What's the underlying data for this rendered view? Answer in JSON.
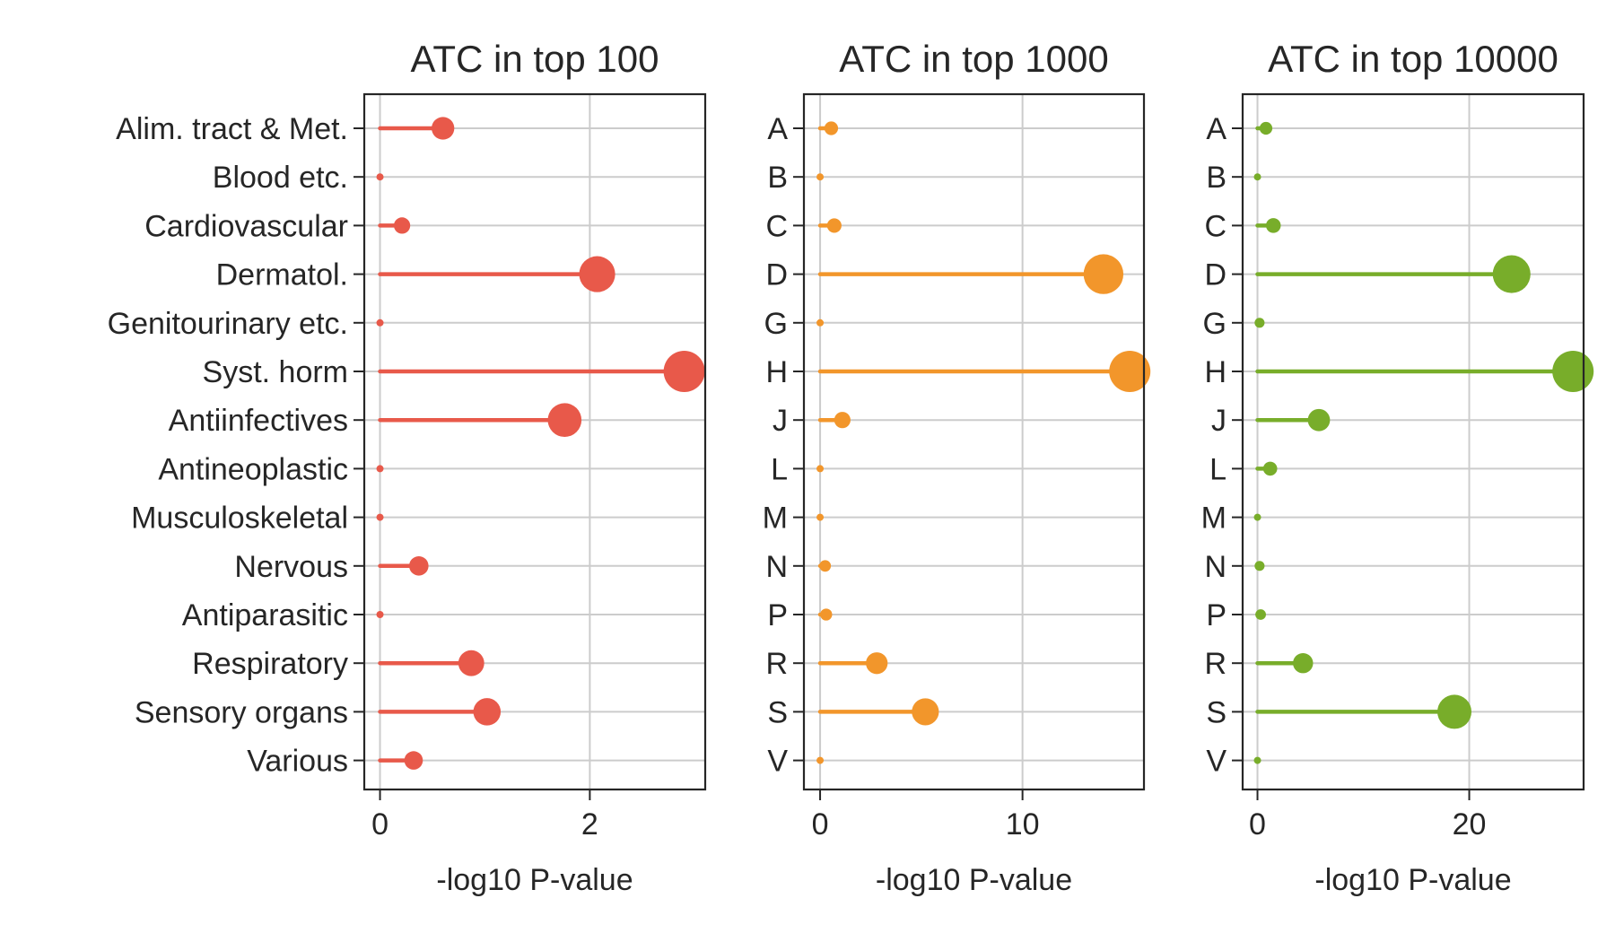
{
  "chart_data": [
    {
      "type": "lollipop",
      "title": "ATC in top 100",
      "xlabel": "-log10 P-value",
      "ylabel": "",
      "color": "#e8594a",
      "categories": [
        "Alim. tract & Met.",
        "Blood etc.",
        "Cardiovascular",
        "Dermatol.",
        "Genitourinary etc.",
        "Syst. horm",
        "Antiinfectives",
        "Antineoplastic",
        "Musculoskeletal",
        "Nervous",
        "Antiparasitic",
        "Respiratory",
        "Sensory organs",
        "Various"
      ],
      "values": [
        0.6,
        0.0,
        0.21,
        2.07,
        0.0,
        2.9,
        1.76,
        0.0,
        0.0,
        0.37,
        0.0,
        0.87,
        1.02,
        0.32
      ],
      "xlim": [
        -0.15,
        3.1
      ],
      "xticks": [
        0,
        2
      ],
      "grid": true
    },
    {
      "type": "lollipop",
      "title": "ATC in top 1000",
      "xlabel": "-log10 P-value",
      "ylabel": "",
      "color": "#f2962b",
      "categories": [
        "A",
        "B",
        "C",
        "D",
        "G",
        "H",
        "J",
        "L",
        "M",
        "N",
        "P",
        "R",
        "S",
        "V"
      ],
      "values": [
        0.55,
        0.0,
        0.7,
        14.0,
        0.0,
        15.3,
        1.1,
        0.0,
        0.0,
        0.25,
        0.3,
        2.8,
        5.2,
        0.0
      ],
      "xlim": [
        -0.8,
        16.0
      ],
      "xticks": [
        0,
        10
      ],
      "grid": true
    },
    {
      "type": "lollipop",
      "title": "ATC in top 10000",
      "xlabel": "-log10 P-value",
      "ylabel": "",
      "color": "#78ad2a",
      "categories": [
        "A",
        "B",
        "C",
        "D",
        "G",
        "H",
        "J",
        "L",
        "M",
        "N",
        "P",
        "R",
        "S",
        "V"
      ],
      "values": [
        0.8,
        0.0,
        1.5,
        24.0,
        0.2,
        29.8,
        5.8,
        1.2,
        0.0,
        0.2,
        0.3,
        4.3,
        18.6,
        0.0
      ],
      "xlim": [
        -1.4,
        30.8
      ],
      "xticks": [
        0,
        20
      ],
      "grid": true
    }
  ]
}
